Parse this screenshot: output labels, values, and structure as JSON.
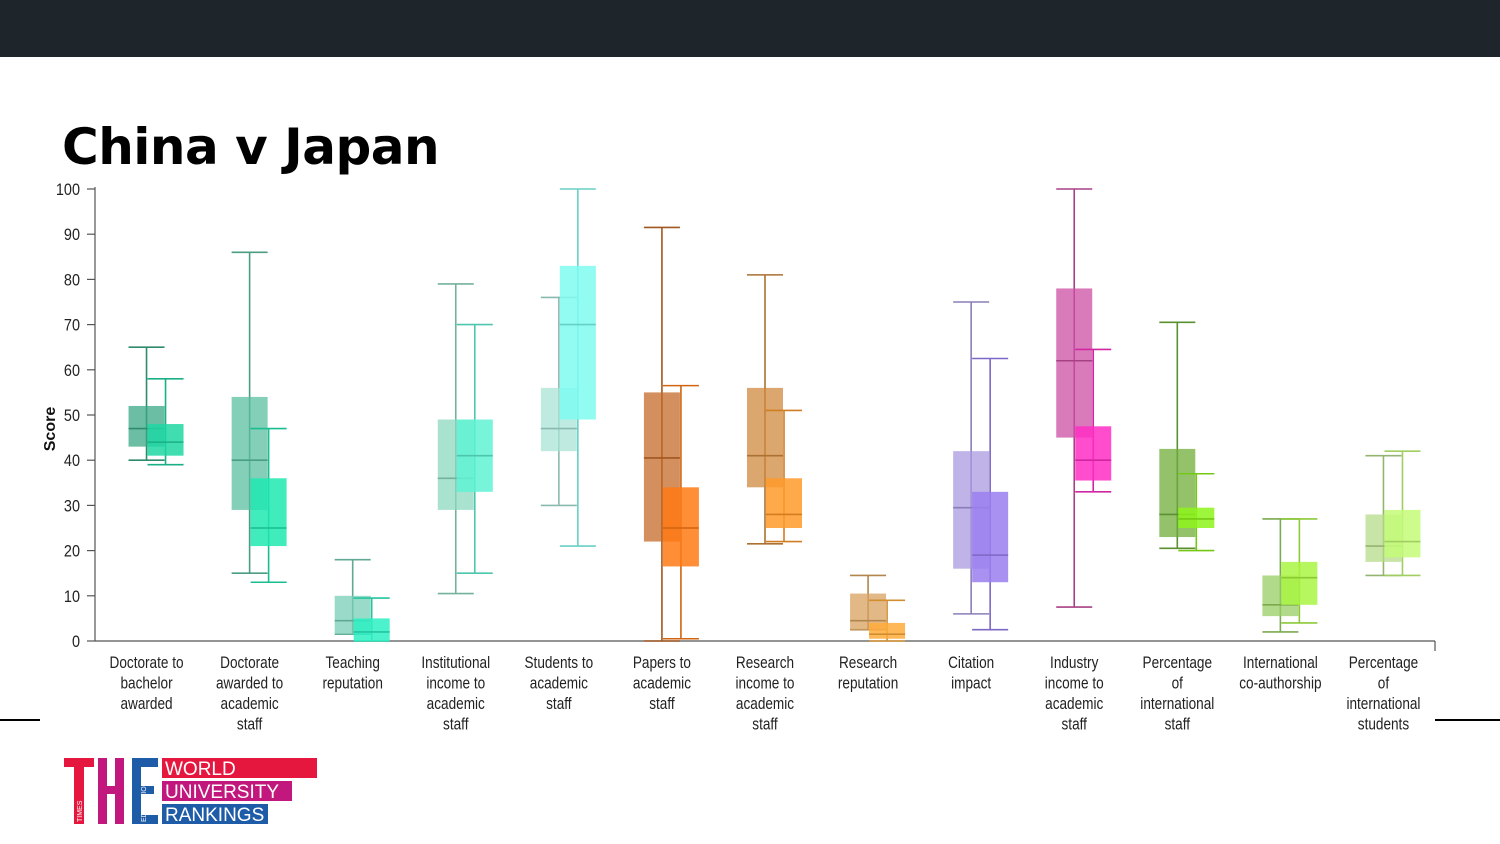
{
  "slide": {
    "title": "China v Japan"
  },
  "logo": {
    "letters": "THE",
    "small_words": [
      "TIMES",
      "HIGHER",
      "EDUCATION"
    ],
    "lines": [
      "WORLD",
      "UNIVERSITY",
      "RANKINGS"
    ],
    "colors": {
      "red": "#e5173f",
      "magenta": "#c2187e",
      "blue": "#1f5ca8"
    }
  },
  "chart_data": {
    "type": "box",
    "title": "China v Japan",
    "ylabel": "Score",
    "xlabel": "",
    "ylim": [
      0,
      100
    ],
    "yticks": [
      0,
      10,
      20,
      30,
      40,
      50,
      60,
      70,
      80,
      90,
      100
    ],
    "grid": false,
    "categories": [
      {
        "label": [
          "Doctorate to",
          "bachelor",
          "awarded"
        ],
        "colors": [
          "#3aa886",
          "#1fd7a3"
        ],
        "boxes": [
          {
            "min": 40,
            "q1": 43,
            "median": 47,
            "q3": 52,
            "max": 65
          },
          {
            "min": 39,
            "q1": 41,
            "median": 44,
            "q3": 48,
            "max": 58
          }
        ]
      },
      {
        "label": [
          "Doctorate",
          "awarded to",
          "academic",
          "staff"
        ],
        "colors": [
          "#5bbfa0",
          "#1ee8b0"
        ],
        "boxes": [
          {
            "min": 15,
            "q1": 29,
            "median": 40,
            "q3": 54,
            "max": 86
          },
          {
            "min": 13,
            "q1": 21,
            "median": 25,
            "q3": 36,
            "max": 47
          }
        ]
      },
      {
        "label": [
          "Teaching",
          "reputation"
        ],
        "colors": [
          "#78ceb5",
          "#2cf0c3"
        ],
        "boxes": [
          {
            "min": 1.5,
            "q1": 1.5,
            "median": 4.5,
            "q3": 10,
            "max": 18
          },
          {
            "min": 0,
            "q1": 0,
            "median": 2,
            "q3": 5,
            "max": 9.5
          }
        ]
      },
      {
        "label": [
          "Institutional",
          "income to",
          "academic",
          "staff"
        ],
        "colors": [
          "#8ed8c0",
          "#5ff2d4"
        ],
        "boxes": [
          {
            "min": 10.5,
            "q1": 29,
            "median": 36,
            "q3": 49,
            "max": 79
          },
          {
            "min": 15,
            "q1": 33,
            "median": 41,
            "q3": 49,
            "max": 70
          }
        ]
      },
      {
        "label": [
          "Students to",
          "academic",
          "staff"
        ],
        "colors": [
          "#a8e3d6",
          "#7ffcf0"
        ],
        "boxes": [
          {
            "min": 30,
            "q1": 42,
            "median": 47,
            "q3": 56,
            "max": 76
          },
          {
            "min": 21,
            "q1": 49,
            "median": 70,
            "q3": 83,
            "max": 100
          }
        ]
      },
      {
        "label": [
          "Papers to",
          "academic",
          "staff"
        ],
        "colors": [
          "#c46a28",
          "#ff7a14"
        ],
        "boxes": [
          {
            "min": 0,
            "q1": 22,
            "median": 40.5,
            "q3": 55,
            "max": 91.5
          },
          {
            "min": 0.5,
            "q1": 16.5,
            "median": 25,
            "q3": 34,
            "max": 56.5
          }
        ]
      },
      {
        "label": [
          "Research",
          "income to",
          "academic",
          "staff"
        ],
        "colors": [
          "#d08a3e",
          "#ff9a2a"
        ],
        "boxes": [
          {
            "min": 21.5,
            "q1": 34,
            "median": 41,
            "q3": 56,
            "max": 81
          },
          {
            "min": 22,
            "q1": 25,
            "median": 28,
            "q3": 36,
            "max": 51
          }
        ]
      },
      {
        "label": [
          "Research",
          "reputation"
        ],
        "colors": [
          "#d8a25e",
          "#ffac3a"
        ],
        "boxes": [
          {
            "min": 2.5,
            "q1": 2.5,
            "median": 4.5,
            "q3": 10.5,
            "max": 14.5
          },
          {
            "min": 0,
            "q1": 0.5,
            "median": 1.5,
            "q3": 4,
            "max": 9
          }
        ]
      },
      {
        "label": [
          "Citation",
          "impact"
        ],
        "colors": [
          "#a99ae0",
          "#9a7ef0"
        ],
        "boxes": [
          {
            "min": 6,
            "q1": 16,
            "median": 29.5,
            "q3": 42,
            "max": 75
          },
          {
            "min": 2.5,
            "q1": 13,
            "median": 19,
            "q3": 33,
            "max": 62.5
          }
        ]
      },
      {
        "label": [
          "Industry",
          "income to",
          "academic",
          "staff"
        ],
        "colors": [
          "#cc4fa4",
          "#ff2ec4"
        ],
        "boxes": [
          {
            "min": 7.5,
            "q1": 45,
            "median": 62,
            "q3": 78,
            "max": 100
          },
          {
            "min": 33,
            "q1": 35.5,
            "median": 40,
            "q3": 47.5,
            "max": 64.5
          }
        ]
      },
      {
        "label": [
          "Percentage",
          "of",
          "international",
          "staff"
        ],
        "colors": [
          "#6fae3a",
          "#8df51a"
        ],
        "boxes": [
          {
            "min": 20.5,
            "q1": 23,
            "median": 28,
            "q3": 42.5,
            "max": 70.5
          },
          {
            "min": 20,
            "q1": 25,
            "median": 27,
            "q3": 29.5,
            "max": 37
          }
        ]
      },
      {
        "label": [
          "International",
          "co-authorship"
        ],
        "colors": [
          "#97cf63",
          "#a9f542"
        ],
        "boxes": [
          {
            "min": 2,
            "q1": 5.5,
            "median": 8,
            "q3": 14.5,
            "max": 27
          },
          {
            "min": 4,
            "q1": 8,
            "median": 14,
            "q3": 17.5,
            "max": 27
          }
        ]
      },
      {
        "label": [
          "Percentage",
          "of",
          "international",
          "students"
        ],
        "colors": [
          "#b5dc8a",
          "#c4fb78"
        ],
        "boxes": [
          {
            "min": 14.5,
            "q1": 17.5,
            "median": 21,
            "q3": 28,
            "max": 41
          },
          {
            "min": 14.5,
            "q1": 18.5,
            "median": 22,
            "q3": 29,
            "max": 42
          }
        ]
      }
    ]
  }
}
